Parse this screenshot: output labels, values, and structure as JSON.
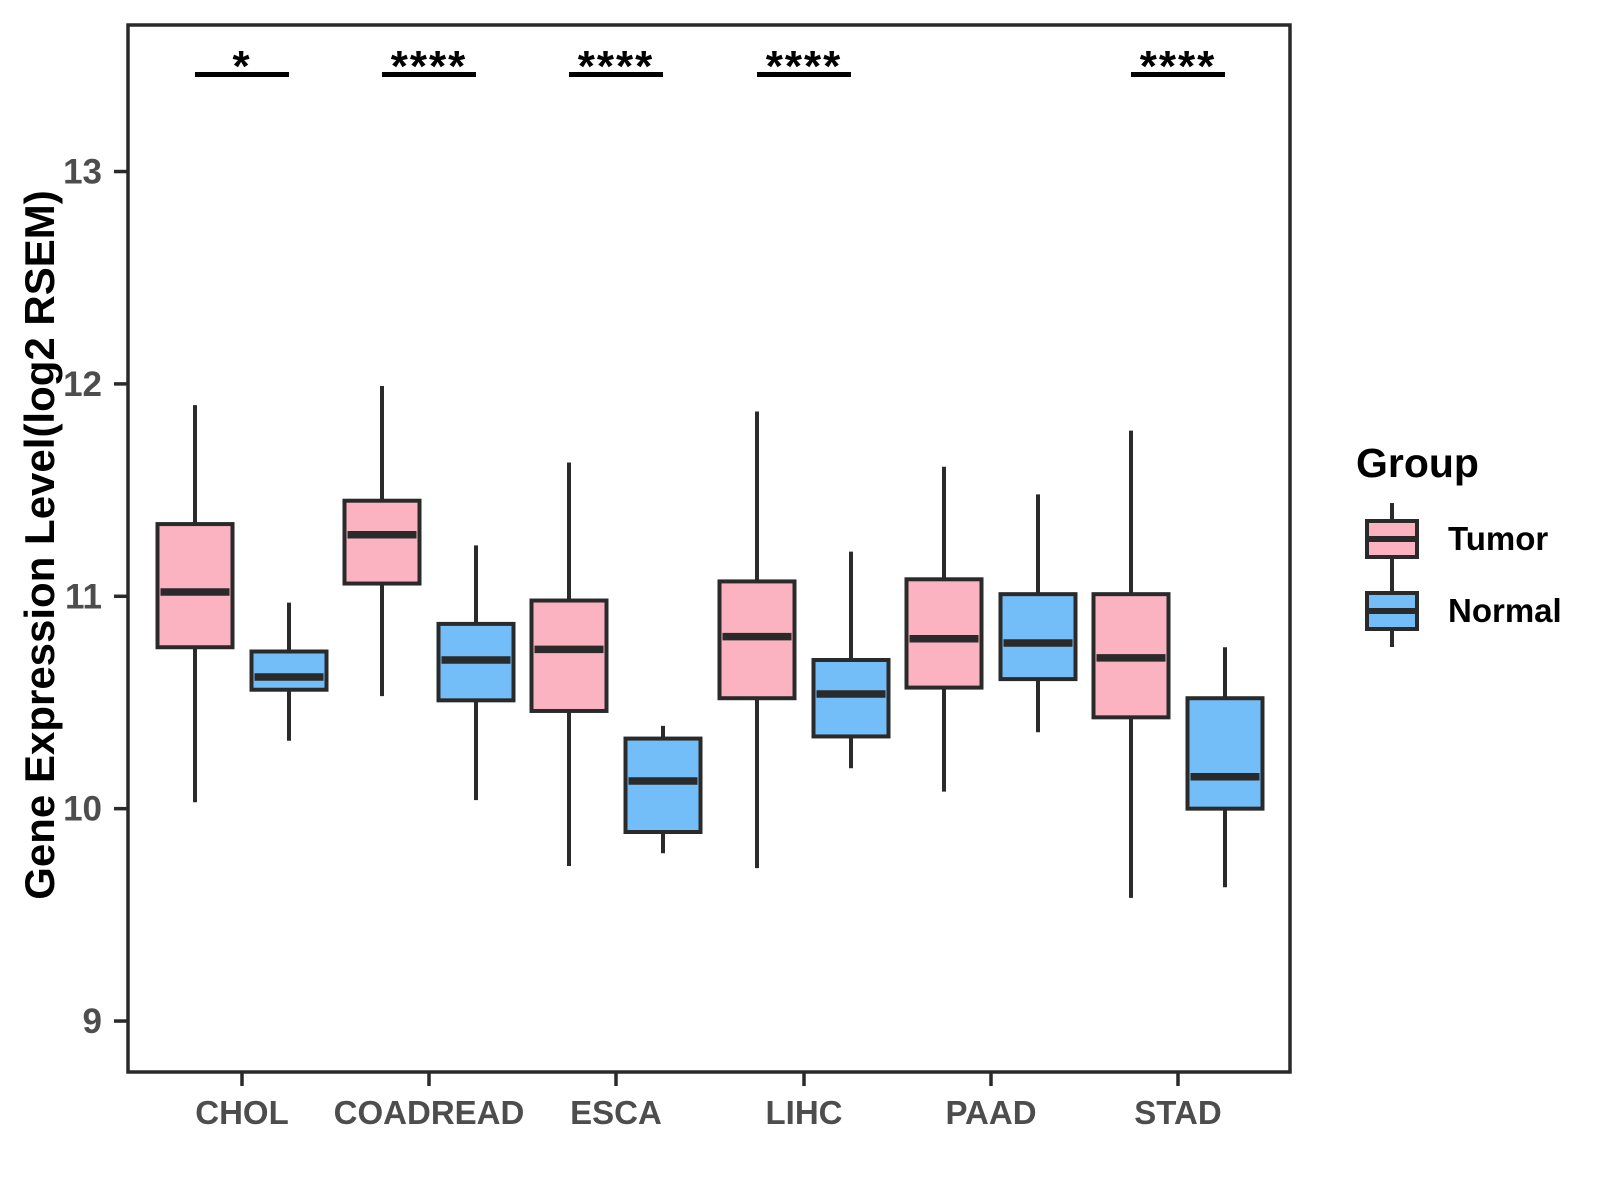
{
  "chart_data": {
    "type": "boxplot",
    "title": "",
    "xlabel": "",
    "ylabel": "Gene Expression Level(log2 RSEM)",
    "ylim": [
      8.76,
      13.69
    ],
    "yticks": [
      9,
      10,
      11,
      12,
      13
    ],
    "categories": [
      "CHOL",
      "COADREAD",
      "ESCA",
      "LIHC",
      "PAAD",
      "STAD"
    ],
    "grid": false,
    "panel_border": true,
    "legend": {
      "title": "Group",
      "position": "right",
      "entries": [
        {
          "label": "Tumor",
          "color": "#FBB3C1"
        },
        {
          "label": "Normal",
          "color": "#73BEF8"
        }
      ]
    },
    "colors": {
      "tumor_fill": "#FBB3C1",
      "normal_fill": "#73BEF8",
      "stroke": "#2A2A2A",
      "axis_text": "#4D4D4D",
      "annotation": "#000000"
    },
    "significance": [
      {
        "category": "CHOL",
        "label": "*"
      },
      {
        "category": "COADREAD",
        "label": "****"
      },
      {
        "category": "ESCA",
        "label": "****"
      },
      {
        "category": "LIHC",
        "label": "****"
      },
      {
        "category": "STAD",
        "label": "****"
      }
    ],
    "series": [
      {
        "name": "Tumor",
        "boxes": [
          {
            "category": "CHOL",
            "whisker_low": 10.03,
            "q1": 10.76,
            "median": 11.02,
            "q3": 11.34,
            "whisker_high": 11.9
          },
          {
            "category": "COADREAD",
            "whisker_low": 10.53,
            "q1": 11.06,
            "median": 11.29,
            "q3": 11.45,
            "whisker_high": 11.99
          },
          {
            "category": "ESCA",
            "whisker_low": 9.73,
            "q1": 10.46,
            "median": 10.75,
            "q3": 10.98,
            "whisker_high": 11.63
          },
          {
            "category": "LIHC",
            "whisker_low": 9.72,
            "q1": 10.52,
            "median": 10.81,
            "q3": 11.07,
            "whisker_high": 11.87
          },
          {
            "category": "PAAD",
            "whisker_low": 10.08,
            "q1": 10.57,
            "median": 10.8,
            "q3": 11.08,
            "whisker_high": 11.61
          },
          {
            "category": "STAD",
            "whisker_low": 9.58,
            "q1": 10.43,
            "median": 10.71,
            "q3": 11.01,
            "whisker_high": 11.78
          }
        ]
      },
      {
        "name": "Normal",
        "boxes": [
          {
            "category": "CHOL",
            "whisker_low": 10.32,
            "q1": 10.56,
            "median": 10.62,
            "q3": 10.74,
            "whisker_high": 10.97
          },
          {
            "category": "COADREAD",
            "whisker_low": 10.04,
            "q1": 10.51,
            "median": 10.7,
            "q3": 10.87,
            "whisker_high": 11.24
          },
          {
            "category": "ESCA",
            "whisker_low": 9.79,
            "q1": 9.89,
            "median": 10.13,
            "q3": 10.33,
            "whisker_high": 10.39
          },
          {
            "category": "LIHC",
            "whisker_low": 10.19,
            "q1": 10.34,
            "median": 10.54,
            "q3": 10.7,
            "whisker_high": 11.21
          },
          {
            "category": "PAAD",
            "whisker_low": 10.36,
            "q1": 10.61,
            "median": 10.78,
            "q3": 11.01,
            "whisker_high": 11.48
          },
          {
            "category": "STAD",
            "whisker_low": 9.63,
            "q1": 10.0,
            "median": 10.15,
            "q3": 10.52,
            "whisker_high": 10.76
          }
        ]
      }
    ]
  }
}
